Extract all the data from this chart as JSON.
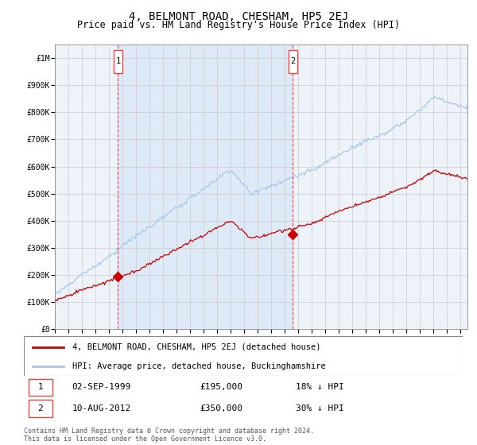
{
  "title": "4, BELMONT ROAD, CHESHAM, HP5 2EJ",
  "subtitle": "Price paid vs. HM Land Registry's House Price Index (HPI)",
  "ylabel_ticks": [
    "£0",
    "£100K",
    "£200K",
    "£300K",
    "£400K",
    "£500K",
    "£600K",
    "£700K",
    "£800K",
    "£900K",
    "£1M"
  ],
  "ytick_values": [
    0,
    100000,
    200000,
    300000,
    400000,
    500000,
    600000,
    700000,
    800000,
    900000,
    1000000
  ],
  "ylim": [
    0,
    1050000
  ],
  "xlim_start": 1995.0,
  "xlim_end": 2025.5,
  "xtick_years": [
    1995,
    1996,
    1997,
    1998,
    1999,
    2000,
    2001,
    2002,
    2003,
    2004,
    2005,
    2006,
    2007,
    2008,
    2009,
    2010,
    2011,
    2012,
    2013,
    2014,
    2015,
    2016,
    2017,
    2018,
    2019,
    2020,
    2021,
    2022,
    2023,
    2024,
    2025
  ],
  "hpi_color": "#a8c8e8",
  "price_color": "#cc0000",
  "vline_color": "#ee4444",
  "shade_color": "#deeaf8",
  "grid_color": "#cccccc",
  "bg_color": "#ffffff",
  "plot_bg_color": "#eef3fa",
  "legend_label_red": "4, BELMONT ROAD, CHESHAM, HP5 2EJ (detached house)",
  "legend_label_blue": "HPI: Average price, detached house, Buckinghamshire",
  "transaction1_label": "1",
  "transaction1_date": "02-SEP-1999",
  "transaction1_price": "£195,000",
  "transaction1_hpi": "18% ↓ HPI",
  "transaction1_x": 1999.67,
  "transaction1_y": 195000,
  "transaction2_label": "2",
  "transaction2_date": "10-AUG-2012",
  "transaction2_price": "£350,000",
  "transaction2_hpi": "30% ↓ HPI",
  "transaction2_x": 2012.6,
  "transaction2_y": 350000,
  "footnote": "Contains HM Land Registry data © Crown copyright and database right 2024.\nThis data is licensed under the Open Government Licence v3.0.",
  "title_fontsize": 10,
  "subtitle_fontsize": 8.5,
  "tick_fontsize": 7,
  "legend_fontsize": 7.5,
  "annotation_fontsize": 8,
  "footnote_fontsize": 6
}
